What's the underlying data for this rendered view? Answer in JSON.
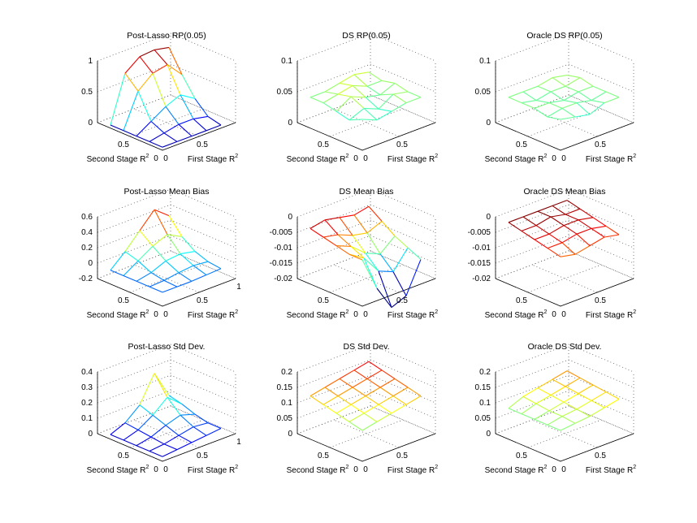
{
  "chart_data": [
    {
      "type": "surface3d",
      "title": "Post-Lasso RP(0.05)",
      "xlabel": "First Stage R",
      "ylabel": "Second Stage R",
      "x_ticks": [
        "0",
        "0.5"
      ],
      "y_ticks": [
        "0",
        "0.5"
      ],
      "z_ticks": [
        "0",
        "0.5",
        "1"
      ],
      "zlim": [
        0,
        1
      ],
      "grid": true,
      "x": [
        0,
        0.2,
        0.4,
        0.6,
        0.8
      ],
      "y": [
        0,
        0.2,
        0.4,
        0.6,
        0.8
      ],
      "z": [
        [
          0.05,
          0.05,
          0.05,
          0.05,
          0.05
        ],
        [
          0.05,
          0.1,
          0.15,
          0.15,
          0.1
        ],
        [
          0.05,
          0.2,
          0.35,
          0.45,
          0.3
        ],
        [
          0.05,
          0.6,
          0.8,
          0.85,
          0.6
        ],
        [
          0.05,
          0.8,
          0.98,
          1.0,
          0.95
        ]
      ]
    },
    {
      "type": "surface3d",
      "title": "DS RP(0.05)",
      "xlabel": "First Stage R",
      "ylabel": "Second Stage R",
      "x_ticks": [
        "0",
        "0.5"
      ],
      "y_ticks": [
        "0",
        "0.5"
      ],
      "z_ticks": [
        "0",
        "0.05",
        "0.1"
      ],
      "zlim": [
        0,
        0.1
      ],
      "grid": true,
      "x": [
        0,
        0.2,
        0.4,
        0.6,
        0.8
      ],
      "y": [
        0,
        0.2,
        0.4,
        0.6,
        0.8
      ],
      "z": [
        [
          0.05,
          0.04,
          0.045,
          0.05,
          0.05
        ],
        [
          0.04,
          0.05,
          0.04,
          0.055,
          0.05
        ],
        [
          0.045,
          0.06,
          0.05,
          0.045,
          0.055
        ],
        [
          0.05,
          0.055,
          0.06,
          0.05,
          0.05
        ],
        [
          0.05,
          0.05,
          0.055,
          0.06,
          0.055
        ]
      ]
    },
    {
      "type": "surface3d",
      "title": "Oracle DS RP(0.05)",
      "xlabel": "First Stage R",
      "ylabel": "Second Stage R",
      "x_ticks": [
        "0",
        "0.5"
      ],
      "y_ticks": [
        "0",
        "0.5"
      ],
      "z_ticks": [
        "0",
        "0.05",
        "0.1"
      ],
      "zlim": [
        0,
        0.1
      ],
      "grid": true,
      "x": [
        0,
        0.2,
        0.4,
        0.6,
        0.8
      ],
      "y": [
        0,
        0.2,
        0.4,
        0.6,
        0.8
      ],
      "z": [
        [
          0.05,
          0.045,
          0.04,
          0.05,
          0.05
        ],
        [
          0.045,
          0.05,
          0.05,
          0.045,
          0.05
        ],
        [
          0.05,
          0.05,
          0.045,
          0.05,
          0.05
        ],
        [
          0.05,
          0.045,
          0.05,
          0.05,
          0.055
        ],
        [
          0.05,
          0.05,
          0.05,
          0.055,
          0.05
        ]
      ]
    },
    {
      "type": "surface3d",
      "title": "Post-Lasso Mean Bias",
      "xlabel": "First Stage R",
      "ylabel": "Second Stage R",
      "x_ticks": [
        "0",
        "0.5",
        "1"
      ],
      "y_ticks": [
        "0",
        "0.5"
      ],
      "z_ticks": [
        "-0.2",
        "0",
        "0.2",
        "0.4",
        "0.6"
      ],
      "zlim": [
        -0.2,
        0.6
      ],
      "grid": true,
      "x": [
        0,
        0.2,
        0.4,
        0.6,
        0.8
      ],
      "y": [
        0,
        0.2,
        0.4,
        0.6,
        0.8
      ],
      "z": [
        [
          -0.02,
          -0.02,
          -0.02,
          -0.01,
          0.0
        ],
        [
          -0.02,
          -0.01,
          0.02,
          0.04,
          0.02
        ],
        [
          -0.02,
          0.02,
          0.1,
          0.12,
          0.08
        ],
        [
          -0.02,
          0.1,
          0.22,
          0.3,
          0.2
        ],
        [
          -0.02,
          0.15,
          0.35,
          0.55,
          0.4
        ]
      ]
    },
    {
      "type": "surface3d",
      "title": "DS Mean Bias",
      "xlabel": "First Stage R",
      "ylabel": "Second Stage R",
      "x_ticks": [
        "0",
        "0.5"
      ],
      "y_ticks": [
        "0",
        "0.5"
      ],
      "z_ticks": [
        "-0.02",
        "-0.015",
        "-0.01",
        "-0.005",
        "0"
      ],
      "zlim": [
        -0.02,
        0
      ],
      "grid": true,
      "x": [
        0,
        0.2,
        0.4,
        0.6,
        0.8
      ],
      "y": [
        0,
        0.2,
        0.4,
        0.6,
        0.8
      ],
      "z": [
        [
          -0.005,
          -0.016,
          -0.024,
          -0.022,
          -0.012
        ],
        [
          -0.005,
          -0.008,
          -0.014,
          -0.016,
          -0.01
        ],
        [
          -0.004,
          -0.006,
          -0.01,
          -0.012,
          -0.008
        ],
        [
          -0.003,
          -0.004,
          -0.006,
          -0.007,
          -0.005
        ],
        [
          -0.002,
          -0.001,
          -0.002,
          -0.003,
          -0.002
        ]
      ]
    },
    {
      "type": "surface3d",
      "title": "Oracle DS Mean Bias",
      "xlabel": "First Stage R",
      "ylabel": "Second Stage R",
      "x_ticks": [
        "0",
        "0.5"
      ],
      "y_ticks": [
        "0",
        "0.5"
      ],
      "z_ticks": [
        "-0.02",
        "-0.015",
        "-0.01",
        "-0.005",
        "0"
      ],
      "zlim": [
        -0.02,
        0
      ],
      "grid": true,
      "x": [
        0,
        0.2,
        0.4,
        0.6,
        0.8
      ],
      "y": [
        0,
        0.2,
        0.4,
        0.6,
        0.8
      ],
      "z": [
        [
          -0.004,
          -0.005,
          -0.004,
          -0.003,
          -0.004
        ],
        [
          -0.003,
          -0.003,
          -0.002,
          -0.002,
          -0.003
        ],
        [
          -0.002,
          -0.002,
          -0.001,
          -0.001,
          -0.002
        ],
        [
          -0.001,
          -0.001,
          0.0,
          -0.001,
          -0.001
        ],
        [
          0.0,
          0.0,
          0.0,
          0.0,
          0.0
        ]
      ]
    },
    {
      "type": "surface3d",
      "title": "Post-Lasso Std Dev.",
      "xlabel": "First Stage R",
      "ylabel": "Second Stage R",
      "x_ticks": [
        "0",
        "0.5",
        "1"
      ],
      "y_ticks": [
        "0",
        "0.5"
      ],
      "z_ticks": [
        "0",
        "0.1",
        "0.2",
        "0.3",
        "0.4"
      ],
      "zlim": [
        0,
        0.4
      ],
      "grid": true,
      "x": [
        0,
        0.2,
        0.4,
        0.6,
        0.8
      ],
      "y": [
        0,
        0.2,
        0.4,
        0.6,
        0.8
      ],
      "z": [
        [
          0.03,
          0.04,
          0.05,
          0.06,
          0.07
        ],
        [
          0.03,
          0.04,
          0.06,
          0.08,
          0.07
        ],
        [
          0.03,
          0.05,
          0.09,
          0.12,
          0.09
        ],
        [
          0.03,
          0.06,
          0.12,
          0.2,
          0.12
        ],
        [
          0.03,
          0.07,
          0.15,
          0.32,
          0.14
        ]
      ]
    },
    {
      "type": "surface3d",
      "title": "DS Std Dev.",
      "xlabel": "First Stage R",
      "ylabel": "Second Stage R",
      "x_ticks": [
        "0",
        "0.5"
      ],
      "y_ticks": [
        "0",
        "0.5"
      ],
      "z_ticks": [
        "0",
        "0.05",
        "0.1",
        "0.15",
        "0.2"
      ],
      "zlim": [
        0,
        0.2
      ],
      "grid": true,
      "x": [
        0,
        0.2,
        0.4,
        0.6,
        0.8
      ],
      "y": [
        0,
        0.2,
        0.4,
        0.6,
        0.8
      ],
      "z": [
        [
          0.1,
          0.11,
          0.12,
          0.13,
          0.14
        ],
        [
          0.11,
          0.12,
          0.13,
          0.14,
          0.15
        ],
        [
          0.12,
          0.13,
          0.14,
          0.15,
          0.16
        ],
        [
          0.13,
          0.14,
          0.15,
          0.16,
          0.17
        ],
        [
          0.14,
          0.15,
          0.16,
          0.17,
          0.18
        ]
      ]
    },
    {
      "type": "surface3d",
      "title": "Oracle DS Std Dev.",
      "xlabel": "First Stage R",
      "ylabel": "Second Stage R",
      "x_ticks": [
        "0",
        "0.5"
      ],
      "y_ticks": [
        "0",
        "0.5"
      ],
      "z_ticks": [
        "0",
        "0.05",
        "0.1",
        "0.15",
        "0.2"
      ],
      "zlim": [
        0,
        0.2
      ],
      "grid": true,
      "x": [
        0,
        0.2,
        0.4,
        0.6,
        0.8
      ],
      "y": [
        0,
        0.2,
        0.4,
        0.6,
        0.8
      ],
      "z": [
        [
          0.1,
          0.105,
          0.11,
          0.12,
          0.13
        ],
        [
          0.1,
          0.11,
          0.115,
          0.125,
          0.135
        ],
        [
          0.1,
          0.11,
          0.12,
          0.13,
          0.14
        ],
        [
          0.1,
          0.115,
          0.125,
          0.135,
          0.145
        ],
        [
          0.1,
          0.12,
          0.13,
          0.14,
          0.15
        ]
      ]
    }
  ]
}
